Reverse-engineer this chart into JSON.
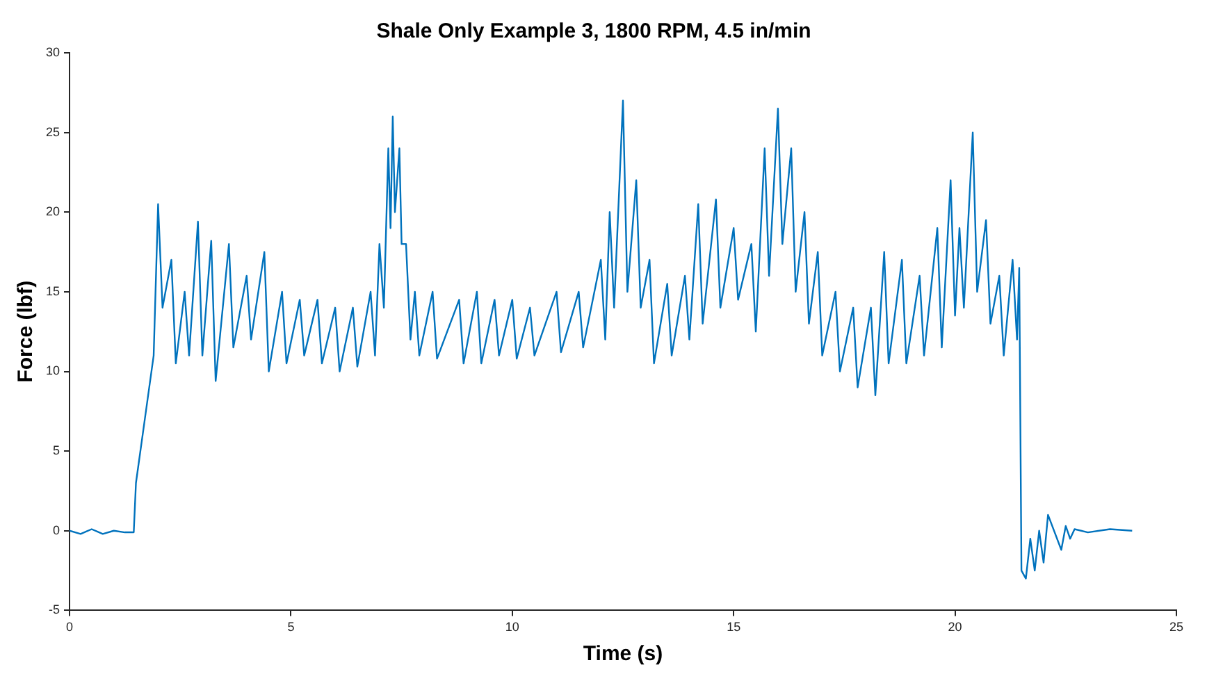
{
  "chart_data": {
    "type": "line",
    "title": "Shale Only Example 3, 1800 RPM, 4.5 in/min",
    "xlabel": "Time (s)",
    "ylabel": "Force (lbf)",
    "xlim": [
      0,
      25
    ],
    "xticks": [
      0,
      5,
      10,
      15,
      20,
      25
    ],
    "ylim": [
      -5,
      30
    ],
    "yticks": [
      -5,
      0,
      5,
      10,
      15,
      20,
      25,
      30
    ],
    "grid": false,
    "legend": false,
    "series": [
      {
        "color": "#0072bd",
        "x": [
          0,
          0.25,
          0.5,
          0.75,
          1,
          1.25,
          1.45,
          1.5,
          1.7,
          1.9,
          2.0,
          2.1,
          2.3,
          2.4,
          2.6,
          2.7,
          2.9,
          3.0,
          3.2,
          3.3,
          3.6,
          3.7,
          4.0,
          4.1,
          4.4,
          4.5,
          4.8,
          4.9,
          5.2,
          5.3,
          5.6,
          5.7,
          6.0,
          6.1,
          6.4,
          6.5,
          6.8,
          6.9,
          7.0,
          7.1,
          7.2,
          7.25,
          7.3,
          7.35,
          7.45,
          7.5,
          7.6,
          7.7,
          7.8,
          7.9,
          8.2,
          8.3,
          8.8,
          8.9,
          9.2,
          9.3,
          9.6,
          9.7,
          10.0,
          10.1,
          10.4,
          10.5,
          11.0,
          11.1,
          11.5,
          11.6,
          12.0,
          12.1,
          12.2,
          12.3,
          12.5,
          12.6,
          12.8,
          12.9,
          13.1,
          13.2,
          13.5,
          13.6,
          13.9,
          14.0,
          14.2,
          14.3,
          14.6,
          14.7,
          15.0,
          15.1,
          15.4,
          15.5,
          15.7,
          15.8,
          16.0,
          16.1,
          16.3,
          16.4,
          16.6,
          16.7,
          16.9,
          17.0,
          17.3,
          17.4,
          17.7,
          17.8,
          18.1,
          18.2,
          18.4,
          18.5,
          18.8,
          18.9,
          19.2,
          19.3,
          19.6,
          19.7,
          19.9,
          20.0,
          20.1,
          20.2,
          20.4,
          20.5,
          20.7,
          20.8,
          21.0,
          21.1,
          21.3,
          21.4,
          21.45,
          21.5,
          21.6,
          21.7,
          21.8,
          21.9,
          22.0,
          22.1,
          22.4,
          22.5,
          22.6,
          22.7,
          23.0,
          23.5,
          24.0
        ],
        "values": [
          0,
          -0.2,
          0.1,
          -0.2,
          0,
          -0.1,
          -0.1,
          3,
          7,
          11,
          20.5,
          14,
          17,
          10.5,
          15,
          11,
          19.4,
          11,
          18.2,
          9.4,
          18,
          11.5,
          16,
          12,
          17.5,
          10,
          15,
          10.5,
          14.5,
          11,
          14.5,
          10.5,
          14,
          10,
          14,
          10.3,
          15,
          11,
          18,
          14,
          24,
          19,
          26,
          20,
          24,
          18,
          18,
          12,
          15,
          11,
          15,
          10.8,
          14.5,
          10.5,
          15,
          10.5,
          14.5,
          11,
          14.5,
          10.8,
          14,
          11,
          15,
          11.2,
          15,
          11.5,
          17,
          12,
          20,
          14,
          27,
          15,
          22,
          14,
          17,
          10.5,
          15.5,
          11,
          16,
          12,
          20.5,
          13,
          20.8,
          14,
          19,
          14.5,
          18,
          12.5,
          24,
          16,
          26.5,
          18,
          24,
          15,
          20,
          13,
          17.5,
          11,
          15,
          10,
          14,
          9,
          14,
          8.5,
          17.5,
          10.5,
          17,
          10.5,
          16,
          11,
          19,
          11.5,
          22,
          13.5,
          19,
          14,
          25,
          15,
          19.5,
          13,
          16,
          11,
          17,
          12,
          16.5,
          -2.5,
          -3,
          -0.5,
          -2.5,
          0,
          -2,
          1,
          -1.2,
          0.3,
          -0.5,
          0.1,
          -0.1,
          0.1,
          0
        ]
      }
    ]
  }
}
